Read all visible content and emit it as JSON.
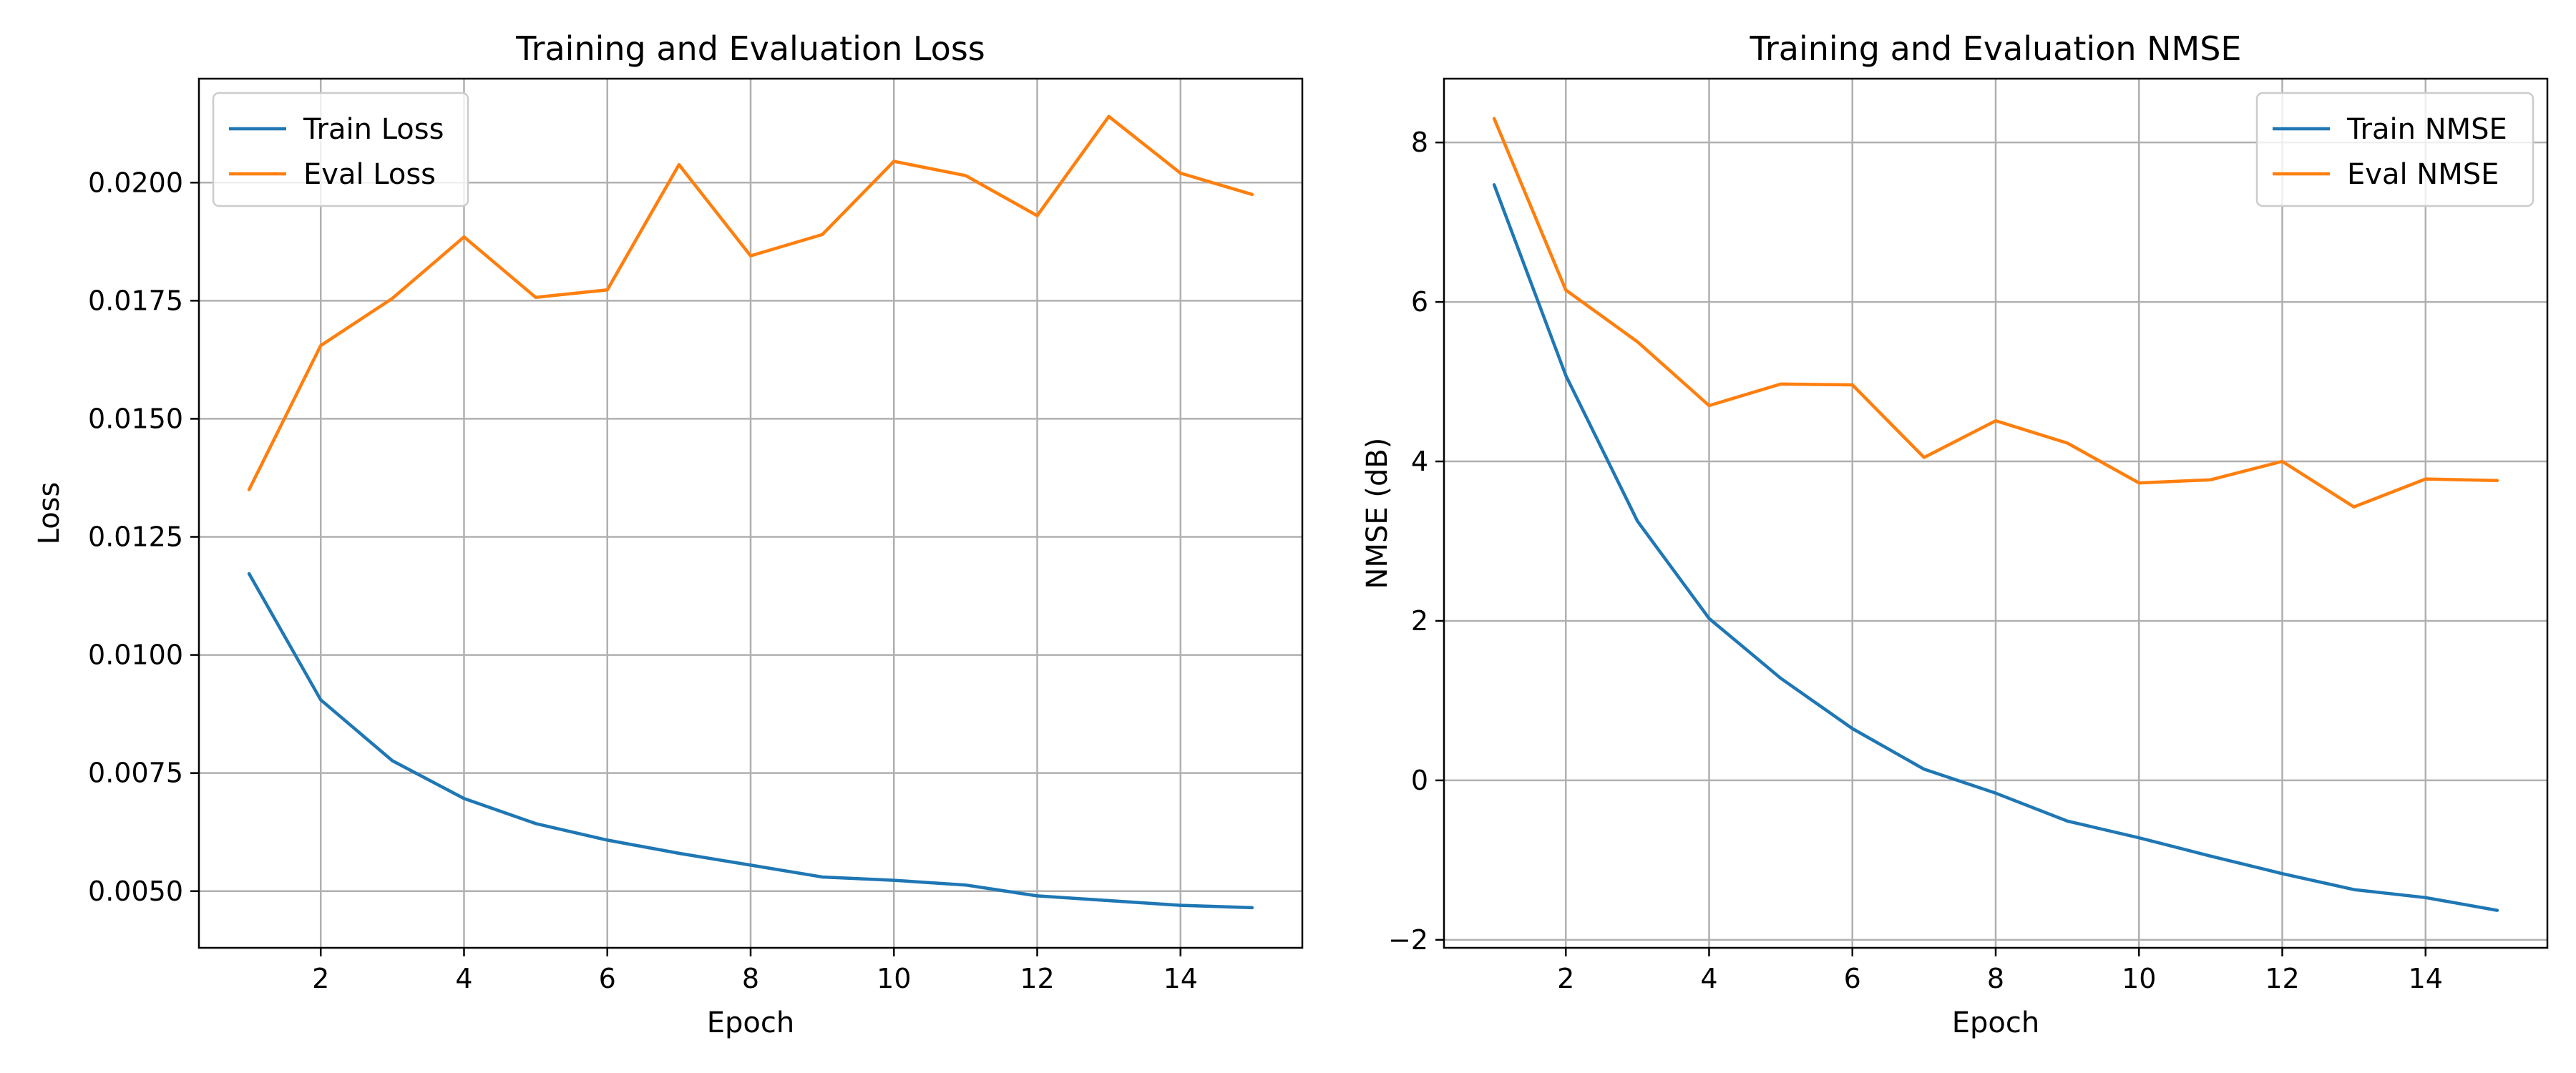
{
  "colors": {
    "series_1": "#1f77b4",
    "series_2": "#ff7f0e"
  },
  "chart_data": [
    {
      "type": "line",
      "title": "Training and Evaluation Loss",
      "xlabel": "Epoch",
      "ylabel": "Loss",
      "x": [
        1,
        2,
        3,
        4,
        5,
        6,
        7,
        8,
        9,
        10,
        11,
        12,
        13,
        14,
        15
      ],
      "xlim": [
        0.3,
        15.7
      ],
      "ylim": [
        0.0038,
        0.0222
      ],
      "xticks": [
        2,
        4,
        6,
        8,
        10,
        12,
        14
      ],
      "yticks": [
        0.005,
        0.0075,
        0.01,
        0.0125,
        0.015,
        0.0175,
        0.02
      ],
      "ytick_labels": [
        "0.0050",
        "0.0075",
        "0.0100",
        "0.0125",
        "0.0150",
        "0.0175",
        "0.0200"
      ],
      "grid": true,
      "legend_position": "upper-left",
      "series": [
        {
          "name": "Train Loss",
          "color": "#1f77b4",
          "values": [
            0.01172,
            0.00905,
            0.00776,
            0.00696,
            0.00643,
            0.00608,
            0.0058,
            0.00555,
            0.0053,
            0.00523,
            0.00513,
            0.0049,
            0.0048,
            0.0047,
            0.00465
          ]
        },
        {
          "name": "Eval Loss",
          "color": "#ff7f0e",
          "values": [
            0.0135,
            0.01655,
            0.01755,
            0.01885,
            0.01757,
            0.01773,
            0.02038,
            0.01845,
            0.0189,
            0.02045,
            0.02015,
            0.0193,
            0.0214,
            0.0202,
            0.01975
          ]
        }
      ]
    },
    {
      "type": "line",
      "title": "Training and Evaluation NMSE",
      "xlabel": "Epoch",
      "ylabel": "NMSE (dB)",
      "x": [
        1,
        2,
        3,
        4,
        5,
        6,
        7,
        8,
        9,
        10,
        11,
        12,
        13,
        14,
        15
      ],
      "xlim": [
        0.3,
        15.7
      ],
      "ylim": [
        -2.1,
        8.8
      ],
      "xticks": [
        2,
        4,
        6,
        8,
        10,
        12,
        14
      ],
      "yticks": [
        -2,
        0,
        2,
        4,
        6,
        8
      ],
      "ytick_labels": [
        "−2",
        "0",
        "2",
        "4",
        "6",
        "8"
      ],
      "grid": true,
      "legend_position": "upper-right",
      "series": [
        {
          "name": "Train NMSE",
          "color": "#1f77b4",
          "values": [
            7.47,
            5.08,
            3.25,
            2.03,
            1.28,
            0.65,
            0.14,
            -0.16,
            -0.51,
            -0.72,
            -0.95,
            -1.17,
            -1.37,
            -1.47,
            -1.63
          ]
        },
        {
          "name": "Eval NMSE",
          "color": "#ff7f0e",
          "values": [
            8.3,
            6.15,
            5.5,
            4.7,
            4.97,
            4.96,
            4.05,
            4.51,
            4.23,
            3.73,
            3.77,
            4.0,
            3.43,
            3.78,
            3.76
          ]
        }
      ]
    }
  ]
}
